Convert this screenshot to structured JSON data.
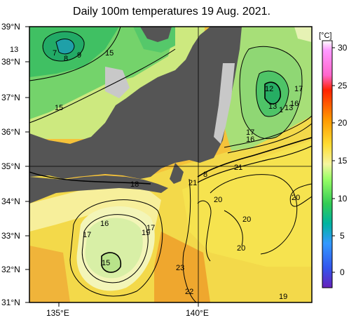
{
  "title": "Daily 100m temperatures 19 Aug. 2021.",
  "colorbar": {
    "unit": "[°C]",
    "ticks": [
      "30",
      "25",
      "20",
      "15",
      "10",
      "5",
      "0"
    ],
    "colors": [
      "#ff66ff",
      "#ff3300",
      "#ff9900",
      "#ffee33",
      "#99ff66",
      "#33cc66",
      "#00b3b3",
      "#3399ff",
      "#3366ff",
      "#6633cc"
    ]
  },
  "lat_labels": [
    "39°N",
    "38°N",
    "37°N",
    "36°N",
    "35°N",
    "34°N",
    "33°N",
    "32°N",
    "31°N"
  ],
  "lon_labels": [
    "135°E",
    "140°E"
  ],
  "contour_labels": [
    {
      "text": "13"
    },
    {
      "text": "7"
    },
    {
      "text": "8"
    },
    {
      "text": "9"
    },
    {
      "text": "15"
    },
    {
      "text": "15"
    },
    {
      "text": "12"
    },
    {
      "text": "17"
    },
    {
      "text": "13"
    },
    {
      "text": "1"
    },
    {
      "text": "13"
    },
    {
      "text": "16"
    },
    {
      "text": "17"
    },
    {
      "text": "16"
    },
    {
      "text": "21"
    },
    {
      "text": "18"
    },
    {
      "text": "8"
    },
    {
      "text": "21"
    },
    {
      "text": "20"
    },
    {
      "text": "20"
    },
    {
      "text": "16"
    },
    {
      "text": "17"
    },
    {
      "text": "17"
    },
    {
      "text": "19"
    },
    {
      "text": "20"
    },
    {
      "text": "20"
    },
    {
      "text": "15"
    },
    {
      "text": "23"
    },
    {
      "text": "22"
    },
    {
      "text": "19"
    }
  ]
}
